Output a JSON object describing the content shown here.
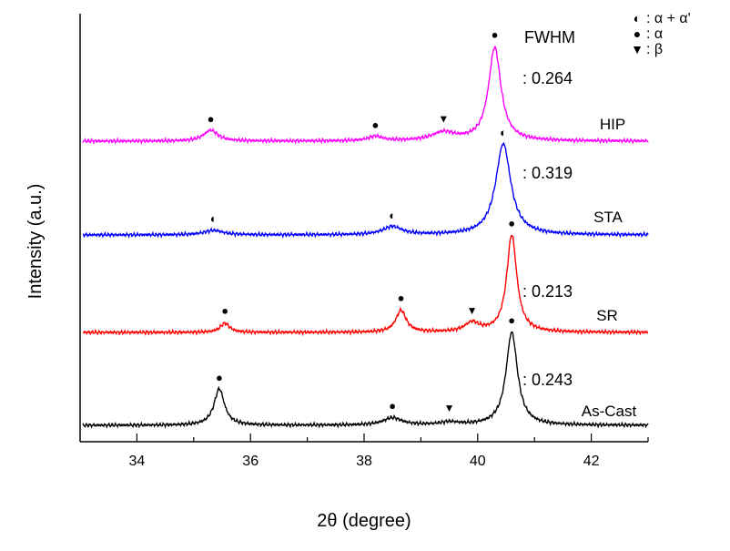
{
  "chart_data": {
    "type": "line",
    "title": "",
    "xlabel": "2θ (degree)",
    "ylabel": "Intensity (a.u.)",
    "xlim": [
      33,
      43
    ],
    "ylim": [
      0,
      100
    ],
    "xticks": [
      "34",
      "36",
      "38",
      "40",
      "42"
    ],
    "xtick_values": [
      34,
      36,
      38,
      40,
      42
    ],
    "grid": false,
    "fwhm_label": "FWHM",
    "legend": {
      "placement": "top-right",
      "entries": [
        {
          "symbol": "◐",
          "label": ": α + α'"
        },
        {
          "symbol": "●",
          "label": ": α"
        },
        {
          "symbol": "▼",
          "label": ": β"
        }
      ]
    },
    "series": [
      {
        "name": "HIP",
        "color": "#ff00ff",
        "offset": 72,
        "fwhm_text": ": 0.264",
        "peaks": [
          {
            "two_theta": 35.3,
            "intensity": 2.4,
            "width": 0.3,
            "marker": "●"
          },
          {
            "two_theta": 38.2,
            "intensity": 1.0,
            "width": 0.3,
            "marker": "●"
          },
          {
            "two_theta": 39.4,
            "intensity": 1.8,
            "width": 0.5,
            "marker": "▼"
          },
          {
            "two_theta": 40.3,
            "intensity": 20.5,
            "width": 0.264,
            "marker": "●"
          }
        ]
      },
      {
        "name": "STA",
        "color": "#0000ff",
        "offset": 51.4,
        "fwhm_text": ": 0.319",
        "peaks": [
          {
            "two_theta": 35.35,
            "intensity": 1.0,
            "width": 0.4,
            "marker": "◐"
          },
          {
            "two_theta": 38.5,
            "intensity": 1.8,
            "width": 0.4,
            "marker": "◐"
          },
          {
            "two_theta": 40.45,
            "intensity": 20.0,
            "width": 0.319,
            "marker": "◐"
          }
        ]
      },
      {
        "name": "SR",
        "color": "#ff0000",
        "offset": 30,
        "fwhm_text": ": 0.213",
        "peaks": [
          {
            "two_theta": 35.55,
            "intensity": 2.0,
            "width": 0.2,
            "marker": "●"
          },
          {
            "two_theta": 38.65,
            "intensity": 4.8,
            "width": 0.22,
            "marker": "●"
          },
          {
            "two_theta": 39.9,
            "intensity": 2.0,
            "width": 0.3,
            "marker": "▼"
          },
          {
            "two_theta": 40.6,
            "intensity": 21.4,
            "width": 0.213,
            "marker": "●"
          }
        ]
      },
      {
        "name": "As-Cast",
        "color": "#000000",
        "offset": 9.6,
        "fwhm_text": ": 0.243",
        "peaks": [
          {
            "two_theta": 35.45,
            "intensity": 8.0,
            "width": 0.22,
            "marker": "●"
          },
          {
            "two_theta": 38.5,
            "intensity": 1.6,
            "width": 0.4,
            "marker": "●"
          },
          {
            "two_theta": 39.5,
            "intensity": 0.6,
            "width": 0.4,
            "marker": "▼"
          },
          {
            "two_theta": 40.6,
            "intensity": 20.4,
            "width": 0.243,
            "marker": "●"
          }
        ]
      }
    ]
  }
}
